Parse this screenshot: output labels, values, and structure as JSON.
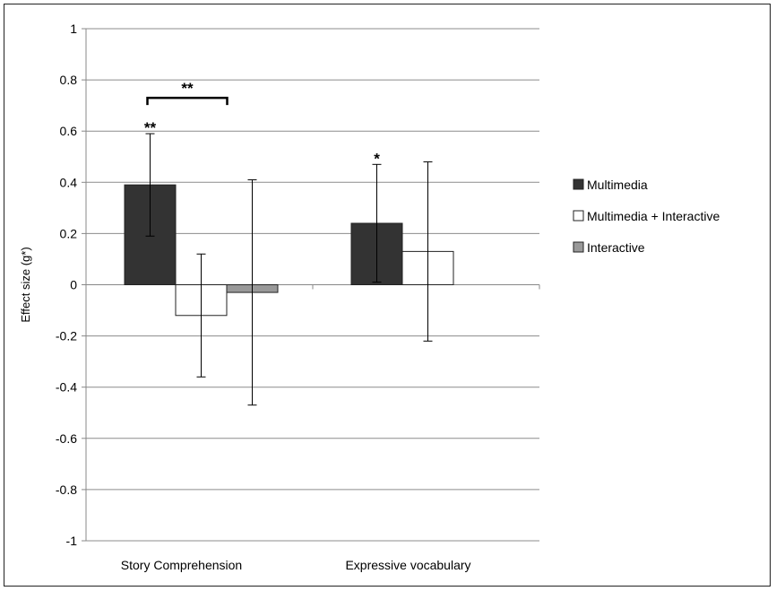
{
  "chart_data": {
    "type": "bar",
    "ylabel": "Effect size (g*)",
    "ylim": [
      -1,
      1
    ],
    "yticks": [
      "1",
      "0.8",
      "0.6",
      "0.4",
      "0.2",
      "0",
      "-0.2",
      "-0.4",
      "-0.6",
      "-0.8",
      "-1"
    ],
    "grid": true,
    "categories": [
      "Story Comprehension",
      "Expressive vocabulary"
    ],
    "series": [
      {
        "name": "Multimedia",
        "color": "#333333",
        "values": [
          0.39,
          0.24
        ],
        "error_low": [
          0.19,
          0.01
        ],
        "error_high": [
          0.59,
          0.47
        ]
      },
      {
        "name": "Multimedia + Interactive",
        "color": "#ffffff",
        "values": [
          -0.12,
          0.13
        ],
        "error_low": [
          -0.36,
          -0.22
        ],
        "error_high": [
          0.12,
          0.48
        ]
      },
      {
        "name": "Interactive",
        "color": "#999999",
        "values": [
          -0.03,
          null
        ],
        "error_low": [
          -0.47,
          null
        ],
        "error_high": [
          0.41,
          null
        ]
      }
    ],
    "legend_position": "right",
    "annotations": [
      {
        "text": "**",
        "category": 0,
        "series": 0,
        "type": "significance"
      },
      {
        "text": "*",
        "category": 1,
        "series": 0,
        "type": "significance"
      },
      {
        "text": "**",
        "category": 0,
        "from_series": 0,
        "to_series": 2,
        "type": "bracket"
      }
    ]
  }
}
